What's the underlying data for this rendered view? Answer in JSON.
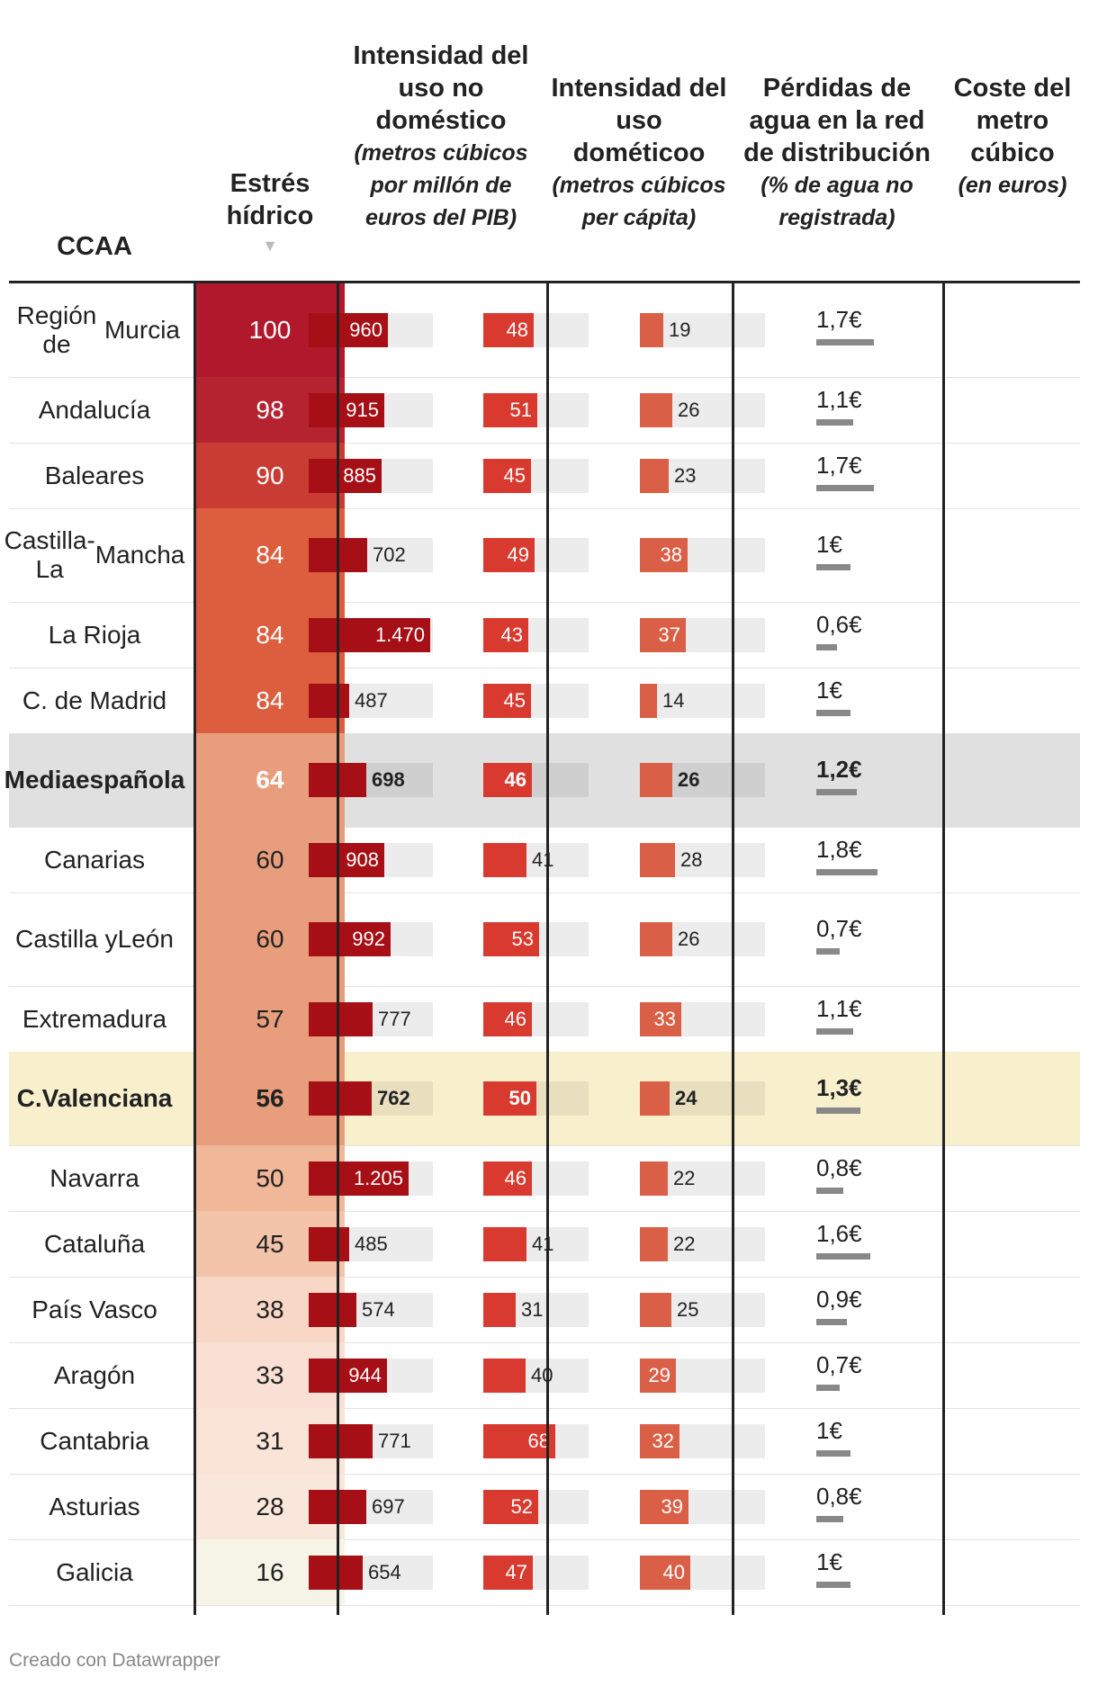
{
  "chart_data": {
    "type": "table",
    "columns": {
      "ccaa": {
        "label": "CCAA"
      },
      "stress": {
        "label": "Estrés hídrico",
        "sort_icon": "triangle-down-icon"
      },
      "nondom": {
        "label": "Intensidad del uso no doméstico",
        "sub": "(metros cúbicos por millón de euros del PIB)"
      },
      "dom": {
        "label": "Intensidad del uso dométicoo",
        "sub": "(metros cúbicos per cápita)"
      },
      "loss": {
        "label": "Pérdidas de agua en la red de distribución",
        "sub": "(% de agua no registrada)"
      },
      "cost": {
        "label": "Coste del metro cúbico",
        "sub": "(en euros)"
      }
    },
    "scales": {
      "nondom_max": 1500,
      "dom_max": 100,
      "loss_max": 100,
      "cost_max": 2.8
    },
    "rows": [
      {
        "ccaa": "Región de Murcia",
        "stress": 100,
        "nondom": 960,
        "nondom_label": "960",
        "dom": 48,
        "loss": 19,
        "cost": 1.7,
        "cost_label": "1,7€",
        "style": "normal"
      },
      {
        "ccaa": "Andalucía",
        "stress": 98,
        "nondom": 915,
        "nondom_label": "915",
        "dom": 51,
        "loss": 26,
        "cost": 1.1,
        "cost_label": "1,1€",
        "style": "normal"
      },
      {
        "ccaa": "Baleares",
        "stress": 90,
        "nondom": 885,
        "nondom_label": "885",
        "dom": 45,
        "loss": 23,
        "cost": 1.7,
        "cost_label": "1,7€",
        "style": "normal"
      },
      {
        "ccaa": "Castilla-La Mancha",
        "stress": 84,
        "nondom": 702,
        "nondom_label": "702",
        "dom": 49,
        "loss": 38,
        "cost": 1.0,
        "cost_label": "1€",
        "style": "normal"
      },
      {
        "ccaa": "La Rioja",
        "stress": 84,
        "nondom": 1470,
        "nondom_label": "1.470",
        "dom": 43,
        "loss": 37,
        "cost": 0.6,
        "cost_label": "0,6€",
        "style": "normal"
      },
      {
        "ccaa": "C. de Madrid",
        "stress": 84,
        "nondom": 487,
        "nondom_label": "487",
        "dom": 45,
        "loss": 14,
        "cost": 1.0,
        "cost_label": "1€",
        "style": "normal"
      },
      {
        "ccaa": "Media española",
        "stress": 64,
        "nondom": 698,
        "nondom_label": "698",
        "dom": 46,
        "loss": 26,
        "cost": 1.2,
        "cost_label": "1,2€",
        "style": "avg"
      },
      {
        "ccaa": "Canarias",
        "stress": 60,
        "nondom": 908,
        "nondom_label": "908",
        "dom": 41,
        "loss": 28,
        "cost": 1.8,
        "cost_label": "1,8€",
        "style": "normal"
      },
      {
        "ccaa": "Castilla y León",
        "stress": 60,
        "nondom": 992,
        "nondom_label": "992",
        "dom": 53,
        "loss": 26,
        "cost": 0.7,
        "cost_label": "0,7€",
        "style": "normal"
      },
      {
        "ccaa": "Extremadura",
        "stress": 57,
        "nondom": 777,
        "nondom_label": "777",
        "dom": 46,
        "loss": 33,
        "cost": 1.1,
        "cost_label": "1,1€",
        "style": "normal"
      },
      {
        "ccaa": "C. Valenciana",
        "stress": 56,
        "nondom": 762,
        "nondom_label": "762",
        "dom": 50,
        "loss": 24,
        "cost": 1.3,
        "cost_label": "1,3€",
        "style": "hl"
      },
      {
        "ccaa": "Navarra",
        "stress": 50,
        "nondom": 1205,
        "nondom_label": "1.205",
        "dom": 46,
        "loss": 22,
        "cost": 0.8,
        "cost_label": "0,8€",
        "style": "normal"
      },
      {
        "ccaa": "Cataluña",
        "stress": 45,
        "nondom": 485,
        "nondom_label": "485",
        "dom": 41,
        "loss": 22,
        "cost": 1.6,
        "cost_label": "1,6€",
        "style": "normal"
      },
      {
        "ccaa": "País Vasco",
        "stress": 38,
        "nondom": 574,
        "nondom_label": "574",
        "dom": 31,
        "loss": 25,
        "cost": 0.9,
        "cost_label": "0,9€",
        "style": "normal"
      },
      {
        "ccaa": "Aragón",
        "stress": 33,
        "nondom": 944,
        "nondom_label": "944",
        "dom": 40,
        "loss": 29,
        "cost": 0.7,
        "cost_label": "0,7€",
        "style": "normal"
      },
      {
        "ccaa": "Cantabria",
        "stress": 31,
        "nondom": 771,
        "nondom_label": "771",
        "dom": 68,
        "loss": 32,
        "cost": 1.0,
        "cost_label": "1€",
        "style": "normal"
      },
      {
        "ccaa": "Asturias",
        "stress": 28,
        "nondom": 697,
        "nondom_label": "697",
        "dom": 52,
        "loss": 39,
        "cost": 0.8,
        "cost_label": "0,8€",
        "style": "normal"
      },
      {
        "ccaa": "Galicia",
        "stress": 16,
        "nondom": 654,
        "nondom_label": "654",
        "dom": 47,
        "loss": 40,
        "cost": 1.0,
        "cost_label": "1€",
        "style": "normal"
      }
    ]
  },
  "colors": {
    "nondom": "#a50f15",
    "dom": "#d93a30",
    "loss": "#d95f46",
    "track": "#ececec",
    "track_avg": "#cfcfcf",
    "track_hl": "#e8dfbf",
    "cost_bar": "#888888",
    "stress_scale": [
      [
        100,
        "#b2182b"
      ],
      [
        98,
        "#b52331"
      ],
      [
        90,
        "#c93c33"
      ],
      [
        84,
        "#dc5e3e"
      ],
      [
        64,
        "#e89e7d"
      ],
      [
        60,
        "#e89e7d"
      ],
      [
        57,
        "#e89e7d"
      ],
      [
        56,
        "#e89e7d"
      ],
      [
        50,
        "#f0b799"
      ],
      [
        45,
        "#f3c4aa"
      ],
      [
        38,
        "#f8d7c6"
      ],
      [
        33,
        "#fae0d4"
      ],
      [
        31,
        "#fae3d7"
      ],
      [
        28,
        "#fae7dc"
      ],
      [
        16,
        "#f6f4e6"
      ]
    ]
  },
  "footer": "Creado con Datawrapper"
}
